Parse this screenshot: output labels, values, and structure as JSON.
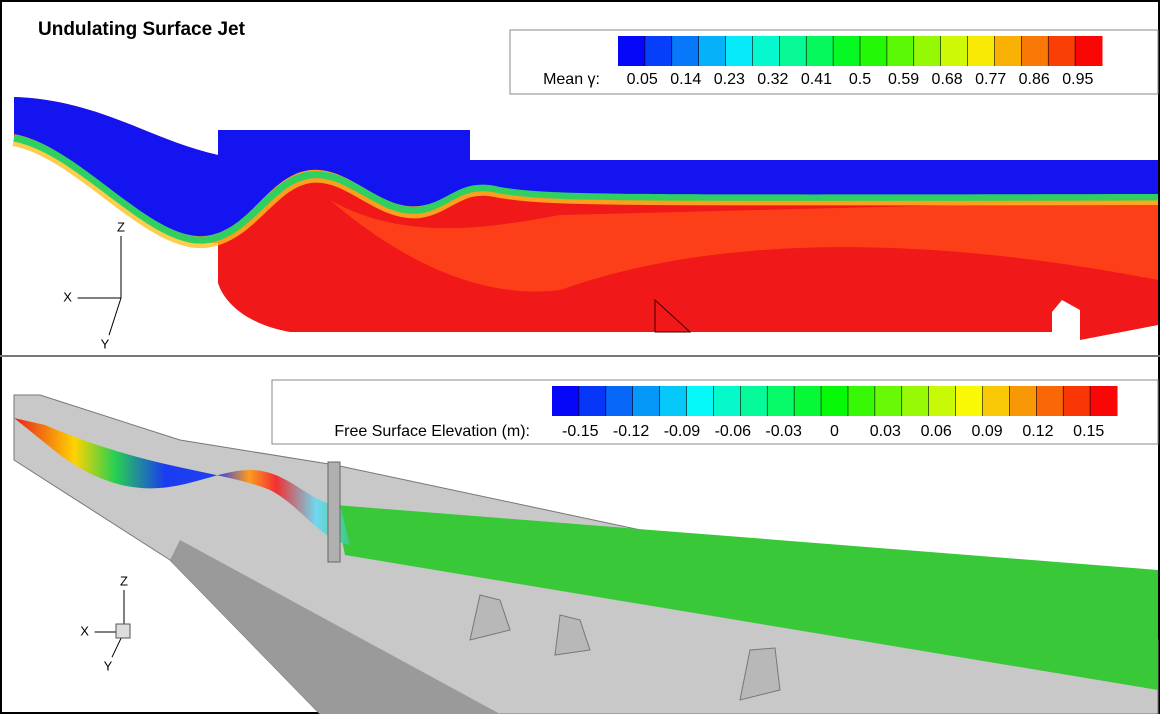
{
  "title": "Undulating Surface Jet",
  "panels": [
    {
      "legend": {
        "label": "Mean γ:",
        "ticks": [
          0.05,
          0.14,
          0.23,
          0.32,
          0.41,
          0.5,
          0.59,
          0.68,
          0.77,
          0.86,
          0.95
        ]
      },
      "axes": [
        "Z",
        "X",
        "Y"
      ]
    },
    {
      "legend": {
        "label": "Free Surface Elevation (m):",
        "ticks": [
          -0.15,
          -0.12,
          -0.09,
          -0.06,
          -0.03,
          0,
          0.03,
          0.06,
          0.09,
          0.12,
          0.15
        ]
      },
      "axes": [
        "Z",
        "X",
        "Y"
      ]
    }
  ]
}
